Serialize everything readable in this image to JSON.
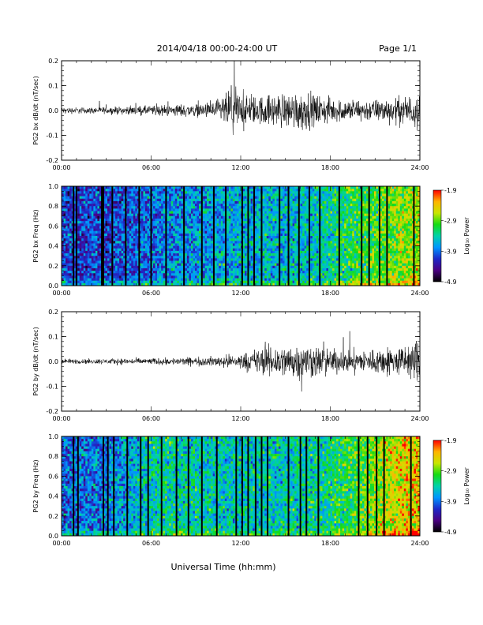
{
  "header": {
    "title": "2014/04/18  00:00-24:00 UT",
    "page": "Page 1/1"
  },
  "colors": {
    "trace": "#000000",
    "colormap": [
      "#000000",
      "#4b0082",
      "#1e28c8",
      "#0096ff",
      "#00d2aa",
      "#14dc14",
      "#c8e600",
      "#ffb400",
      "#ff0000"
    ]
  },
  "chart_data": [
    {
      "type": "line",
      "ylabel": "PG2 bx dB/dt (nT/sec)",
      "ylim": [
        -0.2,
        0.2
      ],
      "yticks": [
        "0.2",
        "0.1",
        "0.0",
        "-0.1",
        "-0.2"
      ],
      "xlim": [
        0,
        24
      ],
      "xticks": [
        "00:00",
        "06:00",
        "12:00",
        "18:00",
        "24:00"
      ],
      "series": [
        {
          "x": [
            0,
            2,
            4,
            6,
            8,
            9,
            10,
            11,
            11.5,
            12,
            13,
            14,
            15,
            16,
            17,
            18,
            19,
            20,
            21,
            22,
            23,
            24
          ],
          "amplitude": [
            0.01,
            0.01,
            0.012,
            0.015,
            0.02,
            0.02,
            0.025,
            0.05,
            0.09,
            0.05,
            0.045,
            0.05,
            0.055,
            0.065,
            0.05,
            0.04,
            0.035,
            0.035,
            0.035,
            0.04,
            0.045,
            0.06
          ]
        }
      ]
    },
    {
      "type": "heatmap",
      "ylabel": "PG2 bx Freq (Hz)",
      "ylim": [
        0.0,
        1.0
      ],
      "yticks": [
        "1.0",
        "0.8",
        "0.6",
        "0.4",
        "0.2",
        "0.0"
      ],
      "xlim": [
        0,
        24
      ],
      "xticks": [
        "00:00",
        "06:00",
        "12:00",
        "18:00",
        "24:00"
      ],
      "colorbar": {
        "label": "Log₁₀ Power",
        "range": [
          -4.9,
          -1.9
        ],
        "ticks": [
          "-1.9",
          "-2.9",
          "-3.9",
          "-4.9"
        ]
      },
      "power_vs_time": {
        "x": [
          0,
          3,
          6,
          9,
          12,
          15,
          17,
          19,
          21,
          22.5,
          24
        ],
        "log_power": [
          -4.1,
          -4.1,
          -3.9,
          -3.75,
          -3.6,
          -3.6,
          -3.5,
          -3.2,
          -3.0,
          -2.8,
          -2.7
        ]
      },
      "gaps_hours": [
        0.8,
        1.0,
        2.7,
        2.8,
        3.4,
        4.3,
        5.2,
        6.0,
        7.0,
        8.2,
        9.4,
        10.2,
        11.0,
        12.1,
        12.5,
        12.9,
        13.4,
        14.6,
        15.2,
        15.9,
        16.6,
        17.3,
        18.6,
        20.1,
        20.6,
        21.3,
        21.8,
        23.6
      ]
    },
    {
      "type": "line",
      "ylabel": "PG2 by dB/dt (nT/sec)",
      "ylim": [
        -0.2,
        0.2
      ],
      "yticks": [
        "0.2",
        "0.1",
        "0.0",
        "-0.1",
        "-0.2"
      ],
      "xlim": [
        0,
        24
      ],
      "xticks": [
        "00:00",
        "06:00",
        "12:00",
        "18:00",
        "24:00"
      ],
      "series": [
        {
          "x": [
            0,
            2,
            4,
            6,
            8,
            10,
            11,
            12,
            12.5,
            13,
            14,
            15,
            16,
            17,
            18,
            19,
            20,
            21,
            22,
            23,
            24
          ],
          "amplitude": [
            0.008,
            0.008,
            0.01,
            0.01,
            0.012,
            0.015,
            0.02,
            0.025,
            0.03,
            0.04,
            0.05,
            0.05,
            0.06,
            0.05,
            0.04,
            0.035,
            0.035,
            0.04,
            0.045,
            0.05,
            0.07
          ]
        }
      ]
    },
    {
      "type": "heatmap",
      "ylabel": "PG2 by Freq (Hz)",
      "ylim": [
        0.0,
        1.0
      ],
      "yticks": [
        "1.0",
        "0.8",
        "0.6",
        "0.4",
        "0.2",
        "0.0"
      ],
      "xlim": [
        0,
        24
      ],
      "xticks": [
        "00:00",
        "06:00",
        "12:00",
        "18:00",
        "24:00"
      ],
      "colorbar": {
        "label": "Log₁₀ Power",
        "range": [
          -4.9,
          -1.9
        ],
        "ticks": [
          "-1.9",
          "-2.9",
          "-3.9",
          "-4.9"
        ]
      },
      "power_vs_time": {
        "x": [
          0,
          3,
          5,
          6,
          8,
          12,
          15,
          18,
          20,
          21.5,
          23,
          24
        ],
        "log_power": [
          -3.95,
          -3.85,
          -3.6,
          -3.4,
          -3.4,
          -3.5,
          -3.45,
          -3.3,
          -3.0,
          -2.7,
          -2.45,
          -2.4
        ]
      },
      "gaps_hours": [
        0.8,
        1.1,
        2.8,
        3.1,
        3.5,
        4.4,
        5.3,
        5.8,
        6.7,
        7.7,
        8.5,
        9.4,
        10.4,
        11.7,
        12.1,
        12.5,
        13.0,
        13.4,
        13.8,
        15.2,
        16.0,
        16.4,
        17.2,
        19.9,
        20.5,
        21.1,
        21.6,
        23.4
      ]
    }
  ],
  "xlabel": "Universal Time (hh:mm)"
}
